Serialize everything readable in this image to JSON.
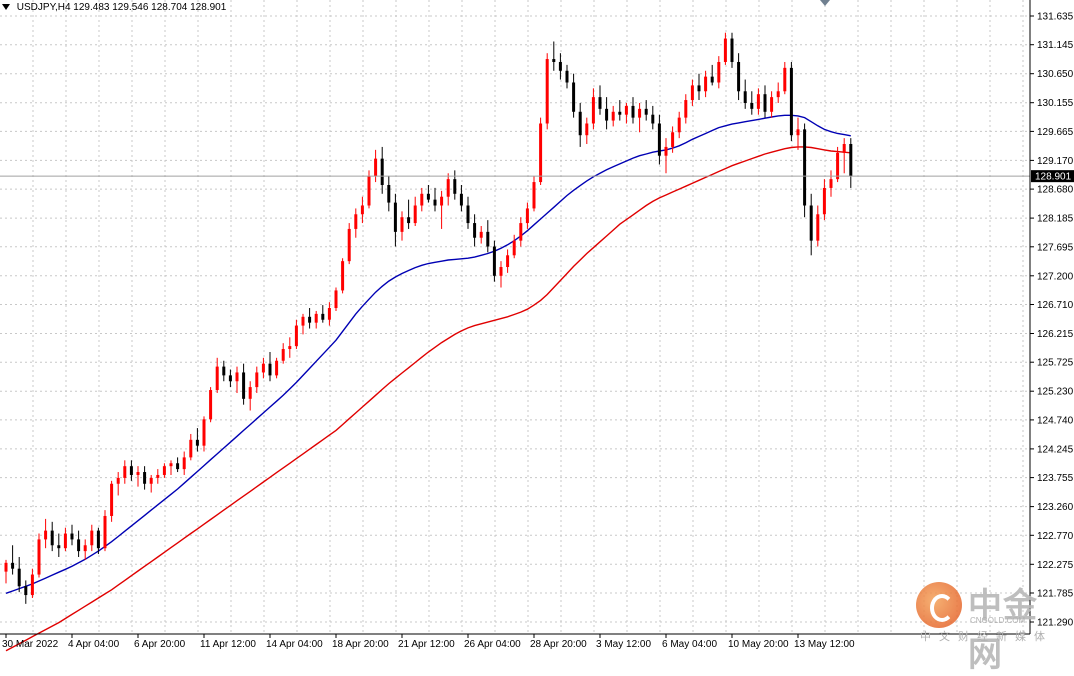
{
  "header": {
    "symbol": "USDJPY,H4",
    "open": "129.483",
    "high": "129.546",
    "low": "128.704",
    "close": "128.901"
  },
  "watermark": {
    "brand_cn": "中金网",
    "brand_en": "CNGOLD.COM",
    "tagline": "中文财经新媒体"
  },
  "colors": {
    "bull": "#ff0000",
    "bear": "#000000",
    "ma_fast": "#0000b4",
    "ma_slow": "#e00000",
    "grid": "#c8c8c8",
    "price_line": "#a0a0a0"
  },
  "chart_data": {
    "type": "candlestick",
    "symbol": "USDJPY",
    "timeframe": "H4",
    "ylim": [
      121.8,
      131.9
    ],
    "y_ticks": [
      "131.635",
      "131.145",
      "130.650",
      "130.155",
      "129.665",
      "129.170",
      "128.680",
      "128.185",
      "127.695",
      "127.200",
      "126.710",
      "126.215",
      "125.725",
      "125.230",
      "124.740",
      "124.245",
      "123.755",
      "123.260",
      "122.770",
      "122.275",
      "121.785",
      "121.290"
    ],
    "x_labels": [
      "30 Mar 2022",
      "4 Apr 04:00",
      "6 Apr 20:00",
      "11 Apr 12:00",
      "14 Apr 04:00",
      "18 Apr 20:00",
      "21 Apr 12:00",
      "26 Apr 04:00",
      "28 Apr 20:00",
      "3 May 12:00",
      "6 May 04:00",
      "10 May 20:00",
      "13 May 12:00"
    ],
    "x_label_index": [
      0,
      10,
      20,
      30,
      40,
      50,
      60,
      70,
      80,
      90,
      100,
      110,
      120
    ],
    "current_price": 128.901,
    "current_price_label": "128.901",
    "candles": [
      [
        122.15,
        122.35,
        121.95,
        122.3
      ],
      [
        122.3,
        122.6,
        122.1,
        122.2
      ],
      [
        122.2,
        122.4,
        121.8,
        121.9
      ],
      [
        121.9,
        122.0,
        121.6,
        121.75
      ],
      [
        121.75,
        122.2,
        121.7,
        122.1
      ],
      [
        122.1,
        122.8,
        122.05,
        122.7
      ],
      [
        122.7,
        123.05,
        122.55,
        122.85
      ],
      [
        122.85,
        123.0,
        122.5,
        122.6
      ],
      [
        122.6,
        122.8,
        122.4,
        122.55
      ],
      [
        122.55,
        122.9,
        122.5,
        122.8
      ],
      [
        122.8,
        122.95,
        122.6,
        122.7
      ],
      [
        122.7,
        122.85,
        122.4,
        122.5
      ],
      [
        122.5,
        122.7,
        122.35,
        122.6
      ],
      [
        122.6,
        122.95,
        122.5,
        122.85
      ],
      [
        122.85,
        122.9,
        122.45,
        122.55
      ],
      [
        122.55,
        123.2,
        122.5,
        123.1
      ],
      [
        123.1,
        123.7,
        123.0,
        123.65
      ],
      [
        123.65,
        123.85,
        123.45,
        123.75
      ],
      [
        123.75,
        124.05,
        123.65,
        123.95
      ],
      [
        123.95,
        124.05,
        123.7,
        123.8
      ],
      [
        123.8,
        123.95,
        123.6,
        123.85
      ],
      [
        123.85,
        123.95,
        123.55,
        123.65
      ],
      [
        123.65,
        123.8,
        123.5,
        123.75
      ],
      [
        123.75,
        123.9,
        123.65,
        123.8
      ],
      [
        123.8,
        124.0,
        123.75,
        123.95
      ],
      [
        123.95,
        124.05,
        123.8,
        124.0
      ],
      [
        124.0,
        124.1,
        123.85,
        123.9
      ],
      [
        123.9,
        124.2,
        123.8,
        124.1
      ],
      [
        124.1,
        124.5,
        124.05,
        124.4
      ],
      [
        124.4,
        124.6,
        124.2,
        124.3
      ],
      [
        124.3,
        124.8,
        124.2,
        124.75
      ],
      [
        124.75,
        125.3,
        124.7,
        125.25
      ],
      [
        125.25,
        125.8,
        125.2,
        125.65
      ],
      [
        125.65,
        125.75,
        125.4,
        125.5
      ],
      [
        125.5,
        125.6,
        125.3,
        125.4
      ],
      [
        125.4,
        125.65,
        125.2,
        125.55
      ],
      [
        125.55,
        125.7,
        125.0,
        125.1
      ],
      [
        125.1,
        125.4,
        124.9,
        125.3
      ],
      [
        125.3,
        125.65,
        125.2,
        125.55
      ],
      [
        125.55,
        125.8,
        125.45,
        125.7
      ],
      [
        125.7,
        125.9,
        125.4,
        125.5
      ],
      [
        125.5,
        125.8,
        125.45,
        125.75
      ],
      [
        125.75,
        126.05,
        125.7,
        125.95
      ],
      [
        125.95,
        126.15,
        125.8,
        126.0
      ],
      [
        126.0,
        126.45,
        125.95,
        126.35
      ],
      [
        126.35,
        126.55,
        126.2,
        126.5
      ],
      [
        126.5,
        126.65,
        126.3,
        126.4
      ],
      [
        126.4,
        126.6,
        126.3,
        126.55
      ],
      [
        126.55,
        126.7,
        126.4,
        126.45
      ],
      [
        126.45,
        126.75,
        126.35,
        126.65
      ],
      [
        126.65,
        127.0,
        126.6,
        126.95
      ],
      [
        126.95,
        127.5,
        126.9,
        127.45
      ],
      [
        127.45,
        128.1,
        127.4,
        128.0
      ],
      [
        128.0,
        128.35,
        127.85,
        128.25
      ],
      [
        128.25,
        128.55,
        128.1,
        128.4
      ],
      [
        128.4,
        129.0,
        128.35,
        128.9
      ],
      [
        128.9,
        129.35,
        128.8,
        129.2
      ],
      [
        129.2,
        129.4,
        128.6,
        128.75
      ],
      [
        128.75,
        128.9,
        128.3,
        128.45
      ],
      [
        128.45,
        128.6,
        127.7,
        127.95
      ],
      [
        127.95,
        128.3,
        127.8,
        128.2
      ],
      [
        128.2,
        128.5,
        128.0,
        128.1
      ],
      [
        128.1,
        128.55,
        128.05,
        128.4
      ],
      [
        128.4,
        128.7,
        128.3,
        128.6
      ],
      [
        128.6,
        128.75,
        128.45,
        128.5
      ],
      [
        128.5,
        128.7,
        128.3,
        128.4
      ],
      [
        128.4,
        128.65,
        128.0,
        128.55
      ],
      [
        128.55,
        128.95,
        128.4,
        128.85
      ],
      [
        128.85,
        129.0,
        128.5,
        128.6
      ],
      [
        128.6,
        128.75,
        128.3,
        128.4
      ],
      [
        128.4,
        128.55,
        128.0,
        128.1
      ],
      [
        128.1,
        128.25,
        127.7,
        127.85
      ],
      [
        127.85,
        128.05,
        127.75,
        127.95
      ],
      [
        127.95,
        128.15,
        127.6,
        127.7
      ],
      [
        127.7,
        127.8,
        127.1,
        127.2
      ],
      [
        127.2,
        127.45,
        127.0,
        127.35
      ],
      [
        127.35,
        127.65,
        127.25,
        127.55
      ],
      [
        127.55,
        127.9,
        127.5,
        127.8
      ],
      [
        127.8,
        128.2,
        127.7,
        128.1
      ],
      [
        128.1,
        128.45,
        128.0,
        128.35
      ],
      [
        128.35,
        128.9,
        128.3,
        128.8
      ],
      [
        128.8,
        129.9,
        128.75,
        129.8
      ],
      [
        129.8,
        131.0,
        129.7,
        130.9
      ],
      [
        130.9,
        131.2,
        130.7,
        130.85
      ],
      [
        130.85,
        131.0,
        130.55,
        130.7
      ],
      [
        130.7,
        130.8,
        130.4,
        130.5
      ],
      [
        130.5,
        130.65,
        129.9,
        130.0
      ],
      [
        130.0,
        130.15,
        129.4,
        129.6
      ],
      [
        129.6,
        129.9,
        129.45,
        129.8
      ],
      [
        129.8,
        130.4,
        129.7,
        130.25
      ],
      [
        130.25,
        130.45,
        129.95,
        130.05
      ],
      [
        130.05,
        130.25,
        129.7,
        129.85
      ],
      [
        129.85,
        130.1,
        129.75,
        130.0
      ],
      [
        130.0,
        130.2,
        129.85,
        129.95
      ],
      [
        129.95,
        130.15,
        129.8,
        130.1
      ],
      [
        130.1,
        130.25,
        129.8,
        129.9
      ],
      [
        129.9,
        130.15,
        129.65,
        130.05
      ],
      [
        130.05,
        130.2,
        129.85,
        129.95
      ],
      [
        129.95,
        130.1,
        129.7,
        129.8
      ],
      [
        129.8,
        129.95,
        129.1,
        129.25
      ],
      [
        129.25,
        129.55,
        128.95,
        129.4
      ],
      [
        129.4,
        129.75,
        129.3,
        129.65
      ],
      [
        129.65,
        130.0,
        129.55,
        129.9
      ],
      [
        129.9,
        130.3,
        129.8,
        130.2
      ],
      [
        130.2,
        130.55,
        130.1,
        130.45
      ],
      [
        130.45,
        130.65,
        130.2,
        130.35
      ],
      [
        130.35,
        130.7,
        130.25,
        130.6
      ],
      [
        130.6,
        130.8,
        130.45,
        130.5
      ],
      [
        130.5,
        130.95,
        130.4,
        130.85
      ],
      [
        130.85,
        131.35,
        130.8,
        131.25
      ],
      [
        131.25,
        131.35,
        130.75,
        130.85
      ],
      [
        130.85,
        131.0,
        130.2,
        130.35
      ],
      [
        130.35,
        130.55,
        130.05,
        130.15
      ],
      [
        130.15,
        130.35,
        129.95,
        130.05
      ],
      [
        130.05,
        130.4,
        129.95,
        130.3
      ],
      [
        130.3,
        130.45,
        129.9,
        130.0
      ],
      [
        130.0,
        130.35,
        129.9,
        130.25
      ],
      [
        130.25,
        130.5,
        130.15,
        130.35
      ],
      [
        130.35,
        130.85,
        130.3,
        130.75
      ],
      [
        130.75,
        130.85,
        129.5,
        129.6
      ],
      [
        129.6,
        129.9,
        129.35,
        129.7
      ],
      [
        129.7,
        129.8,
        128.2,
        128.4
      ],
      [
        128.4,
        128.6,
        127.55,
        127.8
      ],
      [
        127.8,
        128.4,
        127.7,
        128.25
      ],
      [
        128.25,
        128.85,
        128.15,
        128.7
      ],
      [
        128.7,
        129.0,
        128.55,
        128.85
      ],
      [
        128.85,
        129.4,
        128.8,
        129.3
      ],
      [
        129.3,
        129.55,
        128.95,
        129.45
      ],
      [
        129.45,
        129.55,
        128.7,
        128.9
      ]
    ],
    "ma_fast": [
      121.78,
      121.82,
      121.86,
      121.9,
      121.94,
      121.99,
      122.04,
      122.09,
      122.14,
      122.19,
      122.24,
      122.3,
      122.36,
      122.43,
      122.5,
      122.58,
      122.66,
      122.75,
      122.84,
      122.93,
      123.02,
      123.11,
      123.2,
      123.29,
      123.38,
      123.47,
      123.56,
      123.66,
      123.76,
      123.86,
      123.96,
      124.06,
      124.16,
      124.26,
      124.36,
      124.46,
      124.56,
      124.66,
      124.76,
      124.86,
      124.96,
      125.06,
      125.16,
      125.27,
      125.38,
      125.5,
      125.62,
      125.74,
      125.86,
      125.98,
      126.1,
      126.25,
      126.4,
      126.55,
      126.68,
      126.8,
      126.92,
      127.02,
      127.11,
      127.18,
      127.24,
      127.29,
      127.34,
      127.38,
      127.41,
      127.43,
      127.45,
      127.47,
      127.48,
      127.49,
      127.5,
      127.52,
      127.55,
      127.58,
      127.62,
      127.67,
      127.73,
      127.8,
      127.88,
      127.97,
      128.07,
      128.17,
      128.27,
      128.37,
      128.47,
      128.57,
      128.66,
      128.74,
      128.82,
      128.89,
      128.95,
      129.01,
      129.06,
      129.11,
      129.16,
      129.21,
      129.25,
      129.28,
      129.31,
      129.33,
      129.35,
      129.38,
      129.42,
      129.47,
      129.53,
      129.58,
      129.63,
      129.68,
      129.73,
      129.76,
      129.79,
      129.81,
      129.83,
      129.85,
      129.87,
      129.89,
      129.91,
      129.93,
      129.94,
      129.94,
      129.93,
      129.9,
      129.83,
      129.76,
      129.7,
      129.66,
      129.63,
      129.61,
      129.59
    ],
    "ma_slow": [
      120.8,
      120.86,
      120.92,
      120.98,
      121.04,
      121.1,
      121.16,
      121.22,
      121.28,
      121.35,
      121.42,
      121.49,
      121.56,
      121.63,
      121.7,
      121.77,
      121.84,
      121.92,
      122.0,
      122.08,
      122.16,
      122.24,
      122.32,
      122.4,
      122.48,
      122.56,
      122.64,
      122.72,
      122.8,
      122.88,
      122.96,
      123.04,
      123.12,
      123.2,
      123.28,
      123.36,
      123.44,
      123.52,
      123.6,
      123.68,
      123.76,
      123.84,
      123.92,
      124.0,
      124.08,
      124.16,
      124.24,
      124.32,
      124.4,
      124.48,
      124.56,
      124.66,
      124.76,
      124.86,
      124.96,
      125.06,
      125.16,
      125.26,
      125.36,
      125.45,
      125.54,
      125.63,
      125.72,
      125.81,
      125.9,
      125.98,
      126.06,
      126.13,
      126.2,
      126.26,
      126.31,
      126.35,
      126.38,
      126.41,
      126.44,
      126.47,
      126.5,
      126.54,
      126.58,
      126.63,
      126.7,
      126.78,
      126.88,
      127.0,
      127.12,
      127.24,
      127.36,
      127.47,
      127.58,
      127.68,
      127.78,
      127.88,
      127.98,
      128.08,
      128.16,
      128.24,
      128.32,
      128.4,
      128.47,
      128.53,
      128.58,
      128.63,
      128.68,
      128.73,
      128.78,
      128.83,
      128.88,
      128.93,
      128.98,
      129.03,
      129.08,
      129.12,
      129.16,
      129.2,
      129.24,
      129.28,
      129.31,
      129.34,
      129.37,
      129.39,
      129.4,
      129.4,
      129.39,
      129.37,
      129.35,
      129.33,
      129.32,
      129.31,
      129.3
    ]
  }
}
